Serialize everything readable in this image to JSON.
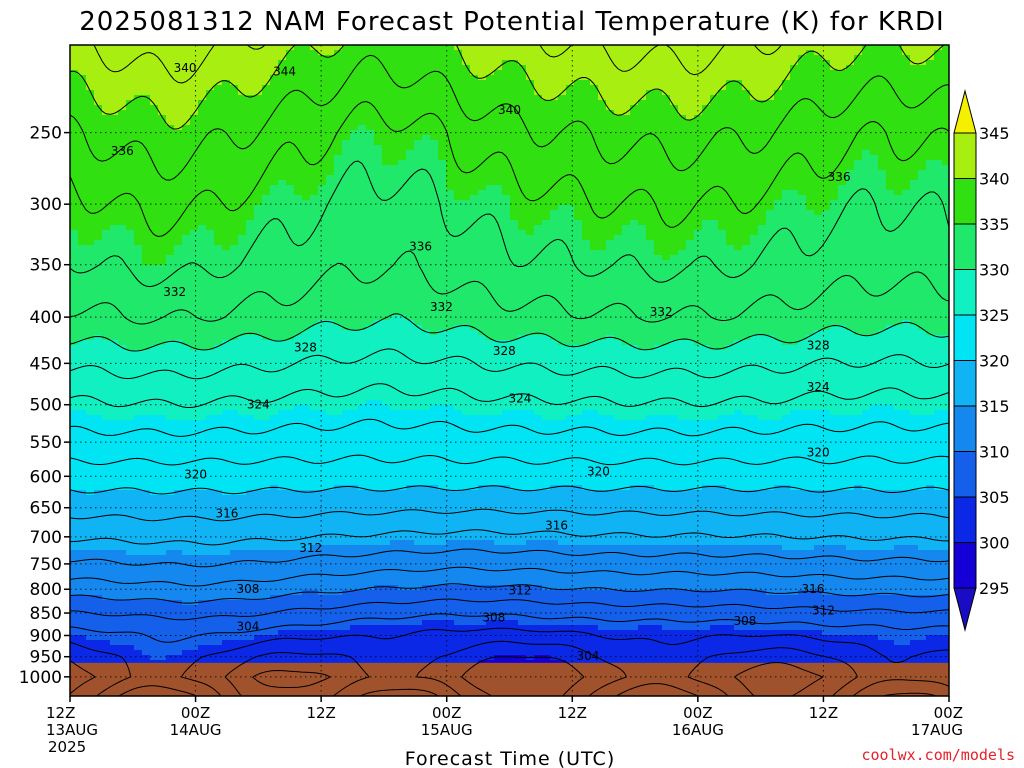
{
  "chart_data": {
    "type": "heatmap",
    "title": "2025081312 NAM Forecast Potential Temperature (K) for KRDI",
    "xlabel": "Forecast Time (UTC)",
    "credit": "coolwx.com/models",
    "x_ticks": [
      {
        "hour": 0,
        "label": "12Z",
        "date": "13AUG",
        "year": "2025"
      },
      {
        "hour": 12,
        "label": "00Z",
        "date": "14AUG",
        "year": ""
      },
      {
        "hour": 24,
        "label": "12Z",
        "date": "",
        "year": ""
      },
      {
        "hour": 36,
        "label": "00Z",
        "date": "15AUG",
        "year": ""
      },
      {
        "hour": 48,
        "label": "12Z",
        "date": "",
        "year": ""
      },
      {
        "hour": 60,
        "label": "00Z",
        "date": "16AUG",
        "year": ""
      },
      {
        "hour": 72,
        "label": "12Z",
        "date": "",
        "year": ""
      },
      {
        "hour": 84,
        "label": "00Z",
        "date": "17AUG",
        "year": ""
      }
    ],
    "xlim": [
      0,
      84
    ],
    "y_ticks": [
      250,
      300,
      350,
      400,
      450,
      500,
      550,
      600,
      650,
      700,
      750,
      800,
      850,
      900,
      950,
      1000
    ],
    "ylim": [
      1050,
      200
    ],
    "y_scale": "log-pressure",
    "ground_pressure": 965,
    "grid": true,
    "colorbar": {
      "levels": [
        295,
        300,
        305,
        310,
        315,
        320,
        325,
        330,
        335,
        340,
        345
      ],
      "colors": [
        "#1400d6",
        "#0a28e6",
        "#1460ea",
        "#1488ee",
        "#10b4f4",
        "#00e4f4",
        "#10f0c0",
        "#20e86a",
        "#30e010",
        "#a8ee10",
        "#f4f000"
      ],
      "under_color": "#1a0cc4",
      "over_color": "#f4f000",
      "placement": "right"
    },
    "ground_color": "#a0522d",
    "profile_levels": [
      1000,
      950,
      900,
      850,
      800,
      750,
      700,
      650,
      600,
      550,
      500,
      450,
      400,
      350,
      300,
      250,
      200
    ],
    "profile_theta": [
      301.5,
      302.8,
      305.0,
      307.8,
      310.8,
      313.6,
      316.2,
      318.7,
      321.0,
      323.2,
      325.6,
      328.3,
      331.4,
      333.6,
      335.2,
      337.6,
      341.5
    ],
    "contour_interval": 2,
    "contour_labels": [
      {
        "value": "340",
        "hour": 11.0,
        "p": 212
      },
      {
        "value": "344",
        "hour": 20.5,
        "p": 214
      },
      {
        "value": "340",
        "hour": 42.0,
        "p": 236
      },
      {
        "value": "336",
        "hour": 5.0,
        "p": 262
      },
      {
        "value": "336",
        "hour": 33.5,
        "p": 334
      },
      {
        "value": "336",
        "hour": 73.5,
        "p": 280
      },
      {
        "value": "332",
        "hour": 10.0,
        "p": 375
      },
      {
        "value": "332",
        "hour": 35.5,
        "p": 390
      },
      {
        "value": "332",
        "hour": 56.5,
        "p": 395
      },
      {
        "value": "328",
        "hour": 22.5,
        "p": 432
      },
      {
        "value": "328",
        "hour": 41.5,
        "p": 436
      },
      {
        "value": "328",
        "hour": 71.5,
        "p": 430
      },
      {
        "value": "324",
        "hour": 18.0,
        "p": 500
      },
      {
        "value": "324",
        "hour": 43.0,
        "p": 492
      },
      {
        "value": "324",
        "hour": 71.5,
        "p": 478
      },
      {
        "value": "320",
        "hour": 12.0,
        "p": 597
      },
      {
        "value": "320",
        "hour": 50.5,
        "p": 593
      },
      {
        "value": "320",
        "hour": 71.5,
        "p": 565
      },
      {
        "value": "316",
        "hour": 15.0,
        "p": 660
      },
      {
        "value": "316",
        "hour": 46.5,
        "p": 680
      },
      {
        "value": "316",
        "hour": 71.0,
        "p": 800
      },
      {
        "value": "312",
        "hour": 23.0,
        "p": 720
      },
      {
        "value": "312",
        "hour": 43.0,
        "p": 803
      },
      {
        "value": "312",
        "hour": 72.0,
        "p": 845
      },
      {
        "value": "308",
        "hour": 17.0,
        "p": 800
      },
      {
        "value": "308",
        "hour": 40.5,
        "p": 860
      },
      {
        "value": "308",
        "hour": 64.5,
        "p": 867
      },
      {
        "value": "304",
        "hour": 17.0,
        "p": 880
      },
      {
        "value": "304",
        "hour": 49.5,
        "p": 948
      }
    ]
  }
}
